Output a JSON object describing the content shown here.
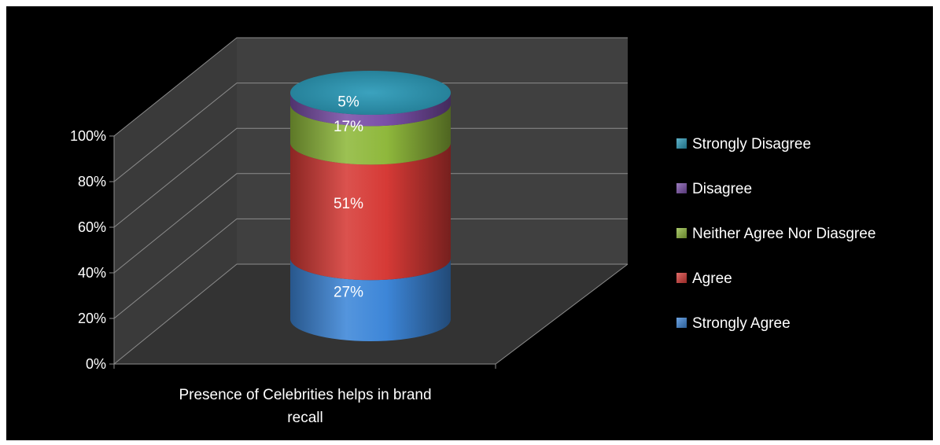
{
  "chart_data": {
    "type": "bar",
    "style": "3d-cylinder-stacked-percent",
    "categories": [
      "Presence of Celebrities helps in  brand recall"
    ],
    "category_label_lines": [
      "Presence of Celebrities helps in  brand",
      "recall"
    ],
    "series": [
      {
        "name": "Strongly Agree",
        "values": [
          27
        ],
        "label": "27%",
        "color": "#3d86d8"
      },
      {
        "name": "Agree",
        "values": [
          51
        ],
        "label": "51%",
        "color": "#d63a36"
      },
      {
        "name": "Neither Agree Nor Diasgree",
        "values": [
          17
        ],
        "label": "17%",
        "color": "#8fb83c"
      },
      {
        "name": "Disagree",
        "values": [
          5
        ],
        "label": "5%",
        "color": "#7a4fa8"
      },
      {
        "name": "Strongly Disagree",
        "values": [
          0
        ],
        "label": "",
        "color": "#2a9ab8"
      }
    ],
    "ylim": [
      0,
      100
    ],
    "yticks": [
      "0%",
      "20%",
      "40%",
      "60%",
      "80%",
      "100%"
    ],
    "grid": true,
    "legend_position": "right",
    "legend_order": [
      "Strongly Disagree",
      "Disagree",
      "Neither Agree Nor Diasgree",
      "Agree",
      "Strongly Agree"
    ],
    "colors": {
      "background": "#000000",
      "back_wall": "#404040",
      "side_wall": "#3a3a3a",
      "floor": "#333333",
      "gridline": "#8c8c8c",
      "text": "#ffffff"
    }
  }
}
